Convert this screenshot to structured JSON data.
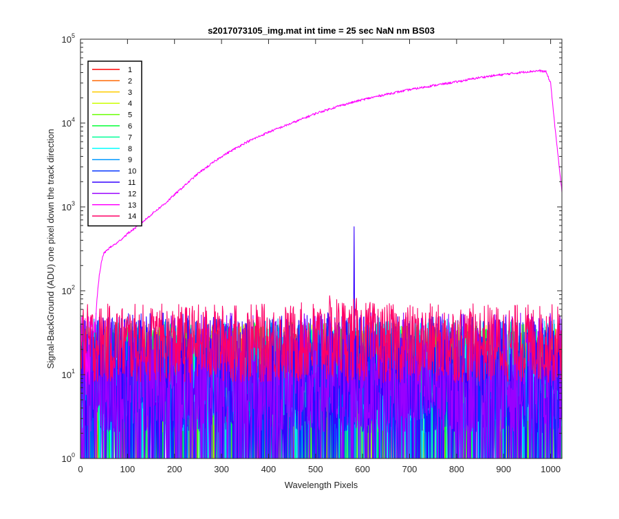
{
  "chart_data": {
    "type": "line",
    "title": "s2017073105_img.mat int time = 25 sec  NaN nm BS03",
    "xlabel": "Wavelength Pixels",
    "ylabel": "Signal-BackGround (ADU) one pixel down the track direction",
    "xlim": [
      0,
      1024
    ],
    "ylim": [
      1,
      100000
    ],
    "yscale": "log",
    "grid": false,
    "legend_position": "top-left",
    "x_ticks": [
      0,
      100,
      200,
      300,
      400,
      500,
      600,
      700,
      800,
      900,
      1000
    ],
    "x_tick_labels": [
      "0",
      "100",
      "200",
      "300",
      "400",
      "500",
      "600",
      "700",
      "800",
      "900",
      "1000"
    ],
    "y_ticks": [
      1,
      10,
      100,
      1000,
      10000,
      100000
    ],
    "y_tick_labels": [
      {
        "base": "10",
        "exp": "0"
      },
      {
        "base": "10",
        "exp": "1"
      },
      {
        "base": "10",
        "exp": "2"
      },
      {
        "base": "10",
        "exp": "3"
      },
      {
        "base": "10",
        "exp": "4"
      },
      {
        "base": "10",
        "exp": "5"
      }
    ],
    "series": [
      {
        "name": "1",
        "color": "#ff0000",
        "noise_floor": 1,
        "noise_ceiling": 35
      },
      {
        "name": "2",
        "color": "#ff6600",
        "noise_floor": 1,
        "noise_ceiling": 35
      },
      {
        "name": "3",
        "color": "#ffcc00",
        "noise_floor": 1,
        "noise_ceiling": 38
      },
      {
        "name": "4",
        "color": "#ccff00",
        "noise_floor": 1,
        "noise_ceiling": 40
      },
      {
        "name": "5",
        "color": "#66ff00",
        "noise_floor": 1,
        "noise_ceiling": 42
      },
      {
        "name": "6",
        "color": "#00ff33",
        "noise_floor": 1,
        "noise_ceiling": 42
      },
      {
        "name": "7",
        "color": "#00ff99",
        "noise_floor": 1,
        "noise_ceiling": 44
      },
      {
        "name": "8",
        "color": "#00ffff",
        "noise_floor": 1,
        "noise_ceiling": 45
      },
      {
        "name": "9",
        "color": "#0099ff",
        "noise_floor": 1,
        "noise_ceiling": 48
      },
      {
        "name": "10",
        "color": "#0033ff",
        "noise_floor": 1,
        "noise_ceiling": 50
      },
      {
        "name": "11",
        "color": "#3300ff",
        "noise_floor": 1,
        "noise_ceiling": 55,
        "spike": {
          "x": 582,
          "y": 580
        }
      },
      {
        "name": "12",
        "color": "#9900ff",
        "noise_floor": 1,
        "noise_ceiling": 55
      },
      {
        "name": "13",
        "color": "#ff00ff",
        "profile_x": [
          30,
          35,
          40,
          45,
          50,
          60,
          80,
          100,
          120,
          140,
          160,
          180,
          200,
          250,
          300,
          350,
          400,
          450,
          500,
          550,
          600,
          650,
          700,
          750,
          800,
          850,
          900,
          950,
          975,
          990,
          1000,
          1010,
          1020,
          1024
        ],
        "profile_y": [
          25,
          80,
          150,
          230,
          280,
          320,
          380,
          480,
          580,
          720,
          900,
          1100,
          1400,
          2500,
          4000,
          5800,
          7800,
          10000,
          13000,
          16000,
          19000,
          22000,
          25000,
          28000,
          31000,
          35000,
          38000,
          41000,
          42000,
          41000,
          30000,
          8000,
          2500,
          1500
        ]
      },
      {
        "name": "14",
        "color": "#ff0066",
        "noise_floor": 8,
        "noise_ceiling": 70,
        "bump_center": 550,
        "bump_peak": 90,
        "bump_width": 55
      }
    ]
  }
}
